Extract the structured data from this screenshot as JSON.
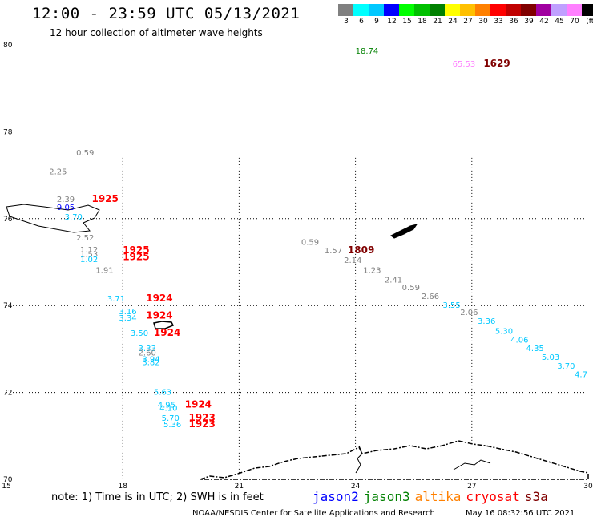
{
  "title": "12:00 - 23:59 UTC 05/13/2021",
  "subtitle": "12 hour collection of altimeter wave heights",
  "legend": {
    "unit": "(ft)",
    "bins": [
      {
        "label": "3",
        "color": "#808080"
      },
      {
        "label": "6",
        "color": "#00ffff"
      },
      {
        "label": "9",
        "color": "#00c8ff"
      },
      {
        "label": "12",
        "color": "#0000ff"
      },
      {
        "label": "15",
        "color": "#00ff00"
      },
      {
        "label": "18",
        "color": "#00c000"
      },
      {
        "label": "21",
        "color": "#008000"
      },
      {
        "label": "24",
        "color": "#ffff00"
      },
      {
        "label": "27",
        "color": "#ffc000"
      },
      {
        "label": "30",
        "color": "#ff8000"
      },
      {
        "label": "33",
        "color": "#ff0000"
      },
      {
        "label": "36",
        "color": "#c00000"
      },
      {
        "label": "39",
        "color": "#800000"
      },
      {
        "label": "42",
        "color": "#a000a0"
      },
      {
        "label": "45",
        "color": "#c0a0ff"
      },
      {
        "label": "70",
        "color": "#ff80ff"
      },
      {
        "label": "",
        "color": "#000000"
      }
    ]
  },
  "map": {
    "lon_ticks": [
      "15",
      "18",
      "21",
      "24",
      "27",
      "30"
    ],
    "lat_ticks": [
      "70",
      "72",
      "74",
      "76",
      "78",
      "80"
    ]
  },
  "observations": [
    {
      "text": "18.74",
      "lon": 24.0,
      "lat": 79.8,
      "color": "#008000"
    },
    {
      "text": "65.53",
      "lon": 26.5,
      "lat": 79.5,
      "color": "#ff80ff"
    },
    {
      "text": "1629",
      "lon": 27.3,
      "lat": 79.5,
      "color": "#800000",
      "bold": true
    },
    {
      "text": "0.59",
      "lon": 16.8,
      "lat": 77.45,
      "color": "#808080"
    },
    {
      "text": "2.25",
      "lon": 16.1,
      "lat": 77.02,
      "color": "#808080"
    },
    {
      "text": "2.39",
      "lon": 16.3,
      "lat": 76.38,
      "color": "#808080"
    },
    {
      "text": "9.05",
      "lon": 16.3,
      "lat": 76.2,
      "color": "#0000ff"
    },
    {
      "text": "3.70",
      "lon": 16.5,
      "lat": 75.98,
      "color": "#00c8ff"
    },
    {
      "text": "1925",
      "lon": 17.2,
      "lat": 76.38,
      "color": "#ff0000",
      "bold": true
    },
    {
      "text": "2.52",
      "lon": 16.8,
      "lat": 75.5,
      "color": "#808080"
    },
    {
      "text": "1.12",
      "lon": 16.9,
      "lat": 75.22,
      "color": "#808080"
    },
    {
      "text": "1.53",
      "lon": 16.9,
      "lat": 75.12,
      "color": "#808080"
    },
    {
      "text": "1.02",
      "lon": 16.9,
      "lat": 75.0,
      "color": "#00c8ff"
    },
    {
      "text": "1.91",
      "lon": 17.3,
      "lat": 74.75,
      "color": "#808080"
    },
    {
      "text": "1925",
      "lon": 18.0,
      "lat": 75.2,
      "color": "#ff0000",
      "bold": true
    },
    {
      "text": "1925",
      "lon": 18.0,
      "lat": 75.05,
      "color": "#ff0000",
      "bold": true
    },
    {
      "text": "3.71",
      "lon": 17.6,
      "lat": 74.1,
      "color": "#00c8ff"
    },
    {
      "text": "1924",
      "lon": 18.6,
      "lat": 74.1,
      "color": "#ff0000",
      "bold": true
    },
    {
      "text": "3.16",
      "lon": 17.9,
      "lat": 73.8,
      "color": "#00c8ff"
    },
    {
      "text": "3.34",
      "lon": 17.9,
      "lat": 73.65,
      "color": "#00c8ff"
    },
    {
      "text": "1924",
      "lon": 18.6,
      "lat": 73.7,
      "color": "#ff0000",
      "bold": true
    },
    {
      "text": "3.50",
      "lon": 18.2,
      "lat": 73.3,
      "color": "#00c8ff"
    },
    {
      "text": "1924",
      "lon": 18.8,
      "lat": 73.3,
      "color": "#ff0000",
      "bold": true
    },
    {
      "text": "3.33",
      "lon": 18.4,
      "lat": 72.95,
      "color": "#00c8ff"
    },
    {
      "text": "2.60",
      "lon": 18.4,
      "lat": 72.85,
      "color": "#808080"
    },
    {
      "text": "3.94",
      "lon": 18.5,
      "lat": 72.7,
      "color": "#00c8ff"
    },
    {
      "text": "3.82",
      "lon": 18.5,
      "lat": 72.63,
      "color": "#00c8ff"
    },
    {
      "text": "5.63",
      "lon": 18.8,
      "lat": 71.95,
      "color": "#00c8ff"
    },
    {
      "text": "4.95",
      "lon": 18.9,
      "lat": 71.65,
      "color": "#00c8ff"
    },
    {
      "text": "1924",
      "lon": 19.6,
      "lat": 71.65,
      "color": "#ff0000",
      "bold": true
    },
    {
      "text": "4.10",
      "lon": 18.95,
      "lat": 71.58,
      "color": "#00c8ff"
    },
    {
      "text": "5.70",
      "lon": 19.0,
      "lat": 71.35,
      "color": "#00c8ff"
    },
    {
      "text": "1923",
      "lon": 19.7,
      "lat": 71.35,
      "color": "#ff0000",
      "bold": true
    },
    {
      "text": "5.36",
      "lon": 19.05,
      "lat": 71.2,
      "color": "#00c8ff"
    },
    {
      "text": "1923",
      "lon": 19.7,
      "lat": 71.2,
      "color": "#ff0000",
      "bold": true
    },
    {
      "text": "0.59",
      "lon": 22.6,
      "lat": 75.4,
      "color": "#808080"
    },
    {
      "text": "1.57",
      "lon": 23.2,
      "lat": 75.2,
      "color": "#808080"
    },
    {
      "text": "1809",
      "lon": 23.8,
      "lat": 75.2,
      "color": "#800000",
      "bold": true
    },
    {
      "text": "2.14",
      "lon": 23.7,
      "lat": 74.98,
      "color": "#808080"
    },
    {
      "text": "1.23",
      "lon": 24.2,
      "lat": 74.75,
      "color": "#808080"
    },
    {
      "text": "2.41",
      "lon": 24.75,
      "lat": 74.53,
      "color": "#808080"
    },
    {
      "text": "0.59",
      "lon": 25.2,
      "lat": 74.35,
      "color": "#808080"
    },
    {
      "text": "2.66",
      "lon": 25.7,
      "lat": 74.15,
      "color": "#808080"
    },
    {
      "text": "3.55",
      "lon": 26.25,
      "lat": 73.95,
      "color": "#00c8ff"
    },
    {
      "text": "2.06",
      "lon": 26.7,
      "lat": 73.78,
      "color": "#808080"
    },
    {
      "text": "3.36",
      "lon": 27.15,
      "lat": 73.58,
      "color": "#00c8ff"
    },
    {
      "text": "5.30",
      "lon": 27.6,
      "lat": 73.35,
      "color": "#00c8ff"
    },
    {
      "text": "4.06",
      "lon": 28.0,
      "lat": 73.15,
      "color": "#00c8ff"
    },
    {
      "text": "4.35",
      "lon": 28.4,
      "lat": 72.95,
      "color": "#00c8ff"
    },
    {
      "text": "5.03",
      "lon": 28.8,
      "lat": 72.75,
      "color": "#00c8ff"
    },
    {
      "text": "3.70",
      "lon": 29.2,
      "lat": 72.55,
      "color": "#00c8ff"
    },
    {
      "text": "4.7",
      "lon": 29.65,
      "lat": 72.35,
      "color": "#00c8ff"
    }
  ],
  "footer": {
    "note": "note: 1) Time is in UTC; 2) SWH is in feet",
    "satellites": [
      {
        "label": "jason2",
        "color": "#0000ff"
      },
      {
        "label": "jason3",
        "color": "#008000"
      },
      {
        "label": "altika",
        "color": "#ff8000"
      },
      {
        "label": "cryosat",
        "color": "#ff0000"
      },
      {
        "label": "s3a",
        "color": "#800000"
      }
    ],
    "credit": "NOAA/NESDIS Center for Satellite Applications and Research",
    "timestamp": "May 16 08:32:56 UTC 2021"
  }
}
